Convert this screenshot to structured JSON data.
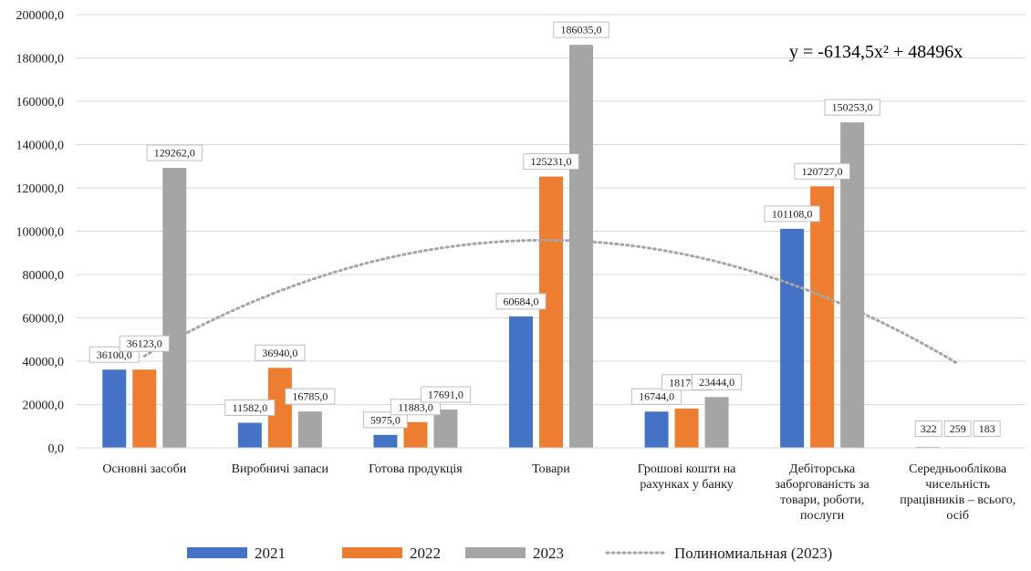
{
  "chart_data": {
    "type": "bar",
    "categories": [
      [
        "Основні засоби"
      ],
      [
        "Виробничі запаси"
      ],
      [
        "Готова продукція"
      ],
      [
        "Товари"
      ],
      [
        "Грошові кошти на",
        "рахунках у банку"
      ],
      [
        "Дебіторська",
        "заборгованість за",
        "товари, роботи,",
        "послуги"
      ],
      [
        "Середньооблікова",
        "чисельність",
        "працівників – всього,",
        "осіб"
      ]
    ],
    "series": [
      {
        "name": "2021",
        "color": "#4472C4",
        "values": [
          36100,
          11582,
          5975,
          60684,
          16744,
          101108,
          322
        ],
        "labels": [
          "36100,0",
          "11582,0",
          "5975,0",
          "60684,0",
          "16744,0",
          "101108,0",
          "322"
        ]
      },
      {
        "name": "2022",
        "color": "#ED7D31",
        "values": [
          36123,
          36940,
          11883,
          125231,
          18170,
          120727,
          259
        ],
        "labels": [
          "36123,0",
          "36940,0",
          "11883,0",
          "125231,0",
          "18170,0",
          "120727,0",
          "259"
        ]
      },
      {
        "name": "2023",
        "color": "#A5A5A5",
        "values": [
          129262,
          16785,
          17691,
          186035,
          23444,
          150253,
          183
        ],
        "labels": [
          "129262,0",
          "16785,0",
          "17691,0",
          "186035,0",
          "23444,0",
          "150253,0",
          "183"
        ]
      }
    ],
    "ylim": [
      0,
      200000
    ],
    "y_ticks": [
      {
        "value": 0,
        "label": "0,0"
      },
      {
        "value": 20000,
        "label": "20000,0"
      },
      {
        "value": 40000,
        "label": "40000,0"
      },
      {
        "value": 60000,
        "label": "60000,0"
      },
      {
        "value": 80000,
        "label": "80000,0"
      },
      {
        "value": 100000,
        "label": "100000,0"
      },
      {
        "value": 120000,
        "label": "120000,0"
      },
      {
        "value": 140000,
        "label": "140000,0"
      },
      {
        "value": 160000,
        "label": "160000,0"
      },
      {
        "value": 180000,
        "label": "180000,0"
      },
      {
        "value": 200000,
        "label": "200000,0"
      }
    ],
    "grid": true,
    "trendline": {
      "name": "Полиномиальная (2023)",
      "type": "polynomial",
      "order": 2,
      "coefficients": {
        "a": -6134.5,
        "b": 48496,
        "c": 0
      },
      "equation": "y = -6134,5x² + 48496x",
      "color": "#A5A5A5"
    },
    "legend_position": "bottom",
    "colors": {
      "gridline": "#D9D9D9",
      "label_border": "#BFBFBF"
    }
  }
}
